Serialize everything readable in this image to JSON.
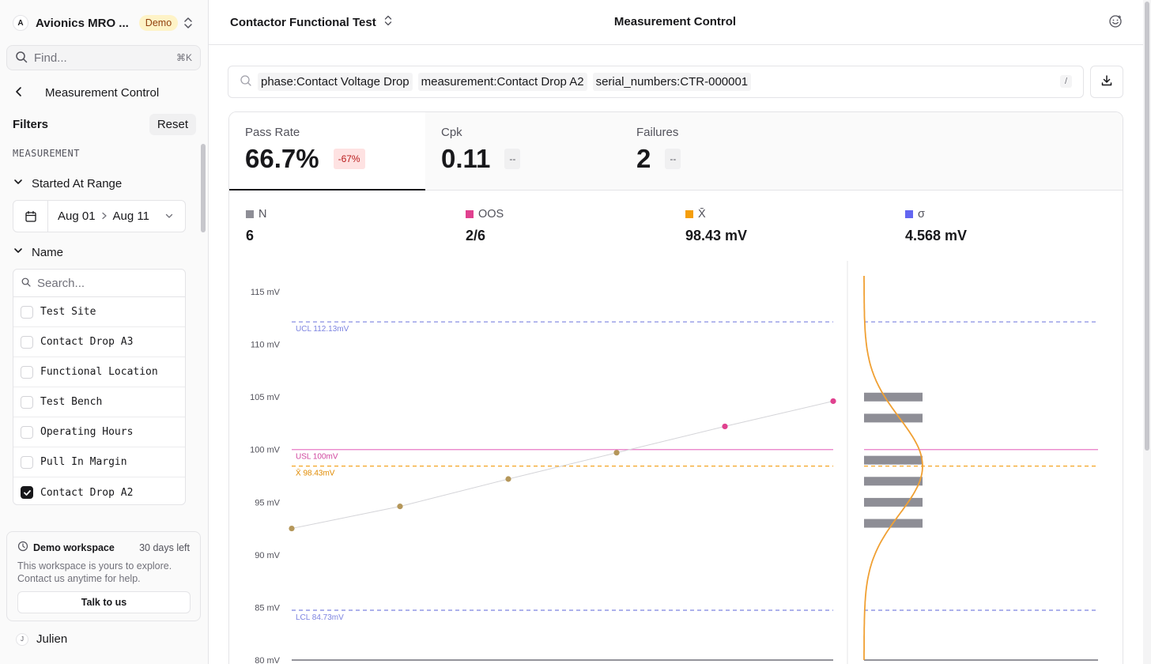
{
  "workspace": {
    "avatar": "A",
    "name": "Avionics MRO ...",
    "badge": "Demo"
  },
  "find": {
    "placeholder": "Find...",
    "shortcut": "⌘K"
  },
  "nav": {
    "back_title": "Measurement Control"
  },
  "filters": {
    "title": "Filters",
    "reset_label": "Reset",
    "section_label": "MEASUREMENT",
    "date_group": {
      "label": "Started At Range",
      "from": "Aug 01",
      "to": "Aug 11"
    },
    "name_group": {
      "label": "Name",
      "search_placeholder": "Search...",
      "items": [
        {
          "label": "Test Site",
          "checked": false
        },
        {
          "label": "Contact Drop A3",
          "checked": false
        },
        {
          "label": "Functional Location",
          "checked": false
        },
        {
          "label": "Test Bench",
          "checked": false
        },
        {
          "label": "Operating Hours",
          "checked": false
        },
        {
          "label": "Pull In Margin",
          "checked": false
        },
        {
          "label": "Contact Drop A2",
          "checked": true
        }
      ]
    }
  },
  "demo_card": {
    "title": "Demo workspace",
    "days_left": "30 days left",
    "body": "This workspace is yours to explore. Contact us anytime for help.",
    "button": "Talk to us"
  },
  "user": {
    "avatar": "J",
    "name": "Julien"
  },
  "header": {
    "test_name": "Contactor Functional Test",
    "page_title": "Measurement Control"
  },
  "query": {
    "chips": [
      "phase:Contact Voltage Drop",
      "measurement:Contact Drop A2",
      "serial_numbers:CTR-000001"
    ],
    "shortcut": "/"
  },
  "kpis": [
    {
      "label": "Pass Rate",
      "value": "66.7%",
      "badge": "-67%",
      "badge_kind": "neg",
      "active": true
    },
    {
      "label": "Cpk",
      "value": "0.11",
      "badge": "--",
      "badge_kind": "none",
      "active": false
    },
    {
      "label": "Failures",
      "value": "2",
      "badge": "--",
      "badge_kind": "none",
      "active": false
    }
  ],
  "stats": [
    {
      "label": "N",
      "value": "6",
      "color": "#8e8e96"
    },
    {
      "label": "OOS",
      "value": "2/6",
      "color": "#e0418f"
    },
    {
      "label": "X̄",
      "value": "98.43 mV",
      "color": "#f59e0b"
    },
    {
      "label": "σ",
      "value": "4.568 mV",
      "color": "#6366f1"
    }
  ],
  "colors": {
    "ucl_lcl": "#7c83e0",
    "usl": "#e879c6",
    "mean": "#f5a524",
    "in_spec_point": "#b5975a",
    "oos_point": "#e0418f",
    "histogram_bar": "#8e8e96",
    "curve": "#f0a033"
  },
  "chart_data": {
    "type": "line",
    "ylabel_unit": "mV",
    "ylim": [
      80,
      116
    ],
    "y_ticks": [
      80,
      85,
      90,
      95,
      100,
      105,
      110,
      115
    ],
    "y_tick_labels": [
      "80 mV",
      "85 mV",
      "90 mV",
      "95 mV",
      "100 mV",
      "105 mV",
      "110 mV",
      "115 mV"
    ],
    "series": [
      {
        "values": [
          92.5,
          94.6,
          97.2,
          99.7,
          102.2,
          104.6
        ],
        "status": [
          "pass",
          "pass",
          "pass",
          "pass",
          "fail",
          "fail"
        ]
      }
    ],
    "reference_lines": [
      {
        "label": "UCL 112.13mV",
        "value": 112.13,
        "style": "dashed",
        "kind": "ucl"
      },
      {
        "label": "USL 100mV",
        "value": 100,
        "style": "solid",
        "kind": "usl"
      },
      {
        "label": "X̄ 98.43mV",
        "value": 98.43,
        "style": "dashed",
        "kind": "mean"
      },
      {
        "label": "LCL 84.73mV",
        "value": 84.73,
        "style": "dashed",
        "kind": "lcl"
      }
    ],
    "histogram": {
      "bins": [
        {
          "center": 104.99,
          "count": 1
        },
        {
          "center": 102.99,
          "count": 1
        },
        {
          "center": 98.99,
          "count": 1
        },
        {
          "center": 96.99,
          "count": 1
        },
        {
          "center": 94.99,
          "count": 1
        },
        {
          "center": 92.99,
          "count": 1
        }
      ],
      "normal_curve": {
        "mean": 98.43,
        "sigma": 4.568
      }
    },
    "grid": false
  }
}
